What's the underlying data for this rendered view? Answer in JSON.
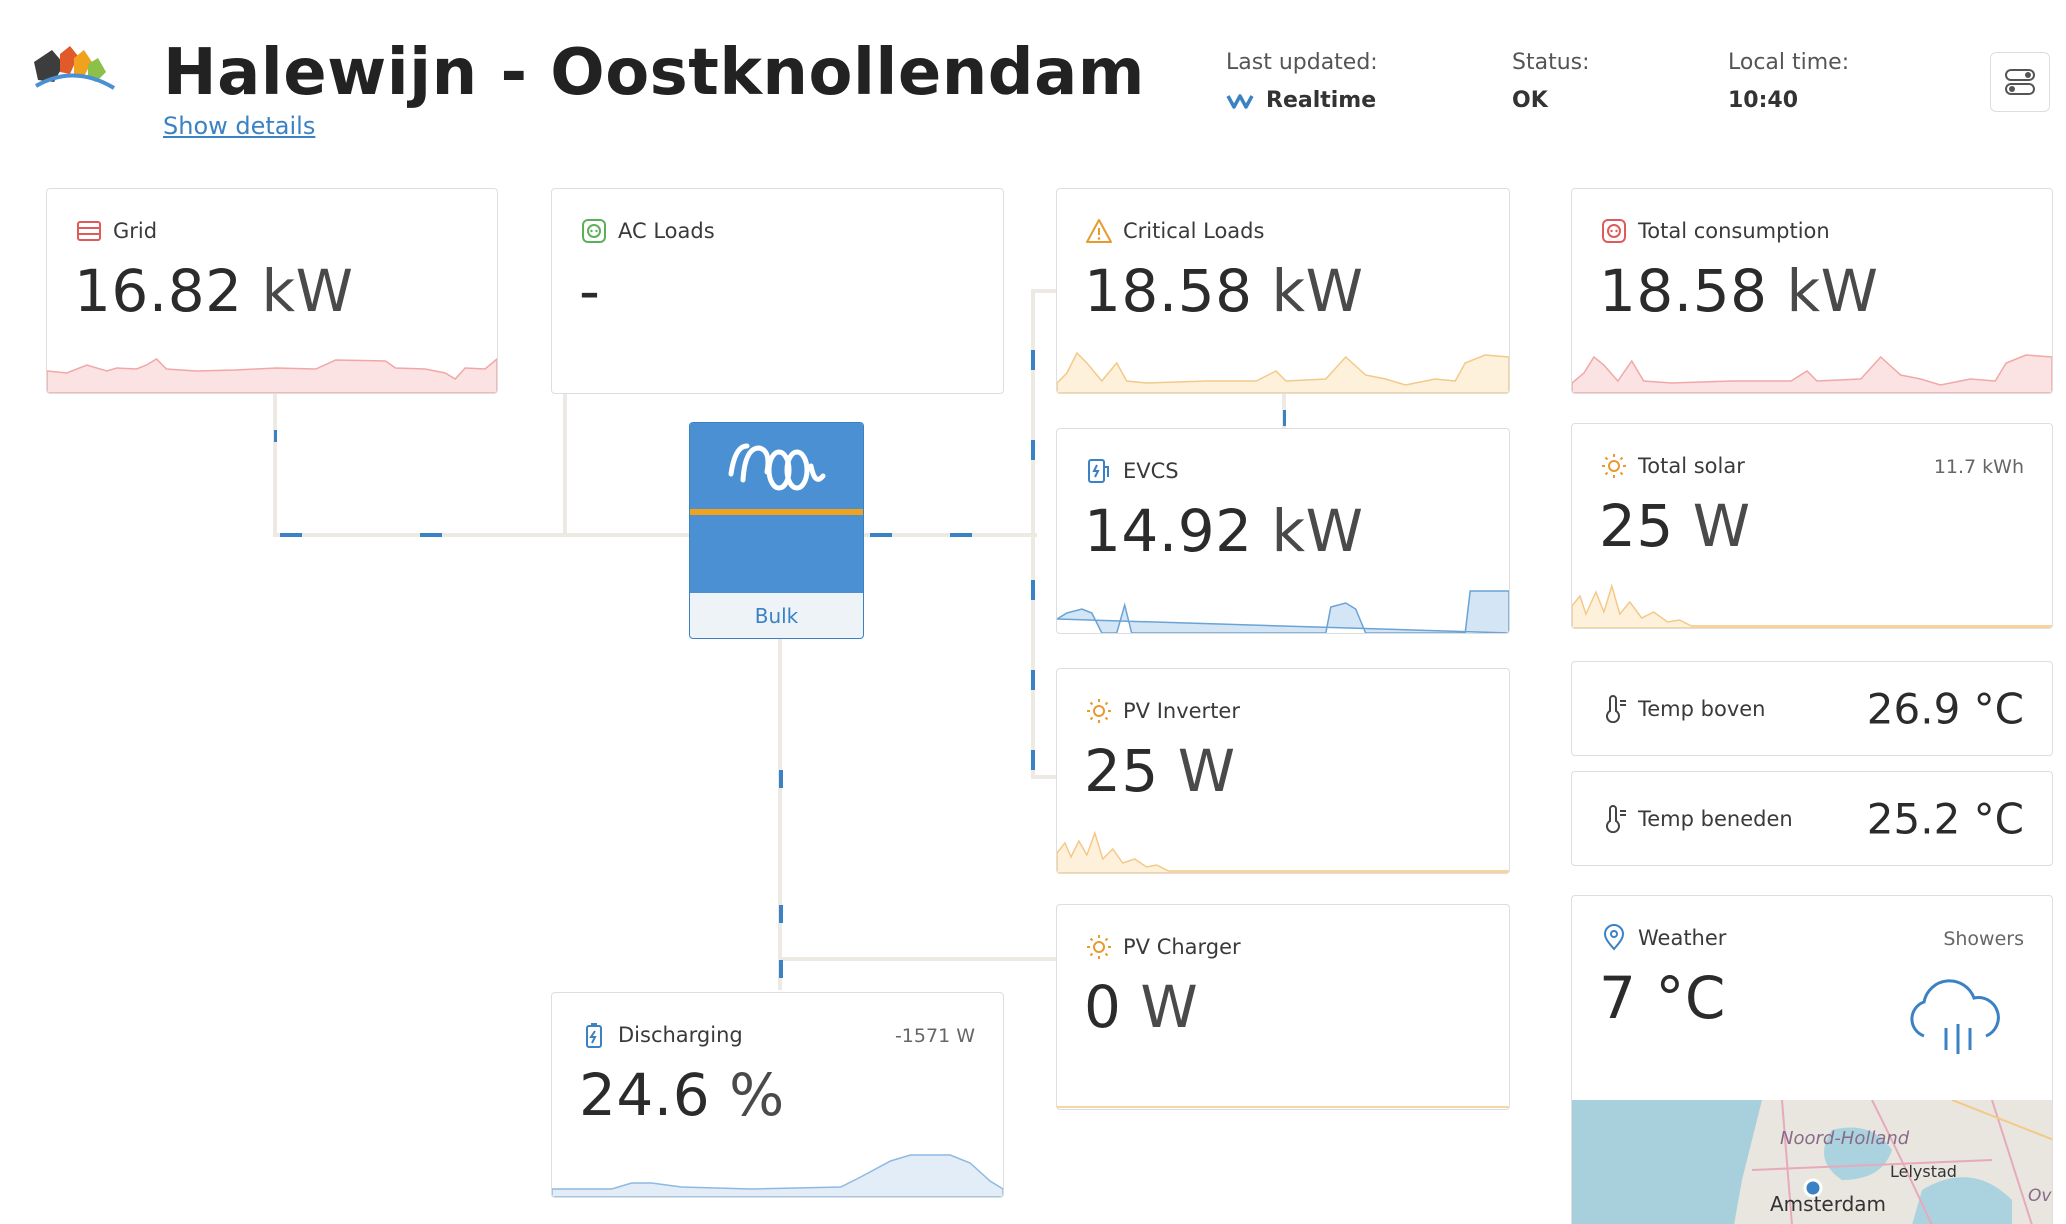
{
  "header": {
    "title": "Halewijn - Oostknollendam",
    "show_details": "Show details",
    "last_updated_label": "Last updated:",
    "last_updated_value": "Realtime",
    "status_label": "Status:",
    "status_value": "OK",
    "local_time_label": "Local time:",
    "local_time_value": "10:40"
  },
  "colors": {
    "accent_blue": "#3b82c4",
    "grid_red": "#e05a5a",
    "loads_green": "#5db05a",
    "warn_orange": "#e89a2c",
    "inverter_blue": "#4a90d2"
  },
  "cards": {
    "grid": {
      "title": "Grid",
      "value": "16.82",
      "unit": "kW",
      "icon": "grid-meter-icon"
    },
    "ac_loads": {
      "title": "AC Loads",
      "value": "-",
      "icon": "socket-icon"
    },
    "critical_loads": {
      "title": "Critical Loads",
      "value": "18.58",
      "unit": "kW",
      "icon": "warning-icon"
    },
    "evcs": {
      "title": "EVCS",
      "value": "14.92",
      "unit": "kW",
      "icon": "ev-charger-icon"
    },
    "pv_inverter": {
      "title": "PV Inverter",
      "value": "25",
      "unit": "W",
      "icon": "sun-icon"
    },
    "pv_charger": {
      "title": "PV Charger",
      "value": "0",
      "unit": "W",
      "icon": "sun-icon"
    },
    "battery": {
      "title": "Discharging",
      "value": "24.6",
      "unit": "%",
      "extra": "-1571 W",
      "icon": "battery-icon"
    },
    "total_consumption": {
      "title": "Total consumption",
      "value": "18.58",
      "unit": "kW",
      "icon": "socket-icon"
    },
    "total_solar": {
      "title": "Total solar",
      "value": "25",
      "unit": "W",
      "extra": "11.7 kWh",
      "icon": "sun-icon"
    },
    "temp_boven": {
      "title": "Temp boven",
      "value": "26.9 °C",
      "icon": "thermometer-icon"
    },
    "temp_beneden": {
      "title": "Temp beneden",
      "value": "25.2 °C",
      "icon": "thermometer-icon"
    },
    "weather": {
      "title": "Weather",
      "value": "7 °C",
      "condition": "Showers",
      "icon": "location-pin-icon"
    }
  },
  "inverter": {
    "state": "Bulk"
  },
  "map": {
    "label_province": "Noord-Holland",
    "label_city": "Amsterdam",
    "label_town": "Lelystad",
    "label_edge": "Ove"
  }
}
